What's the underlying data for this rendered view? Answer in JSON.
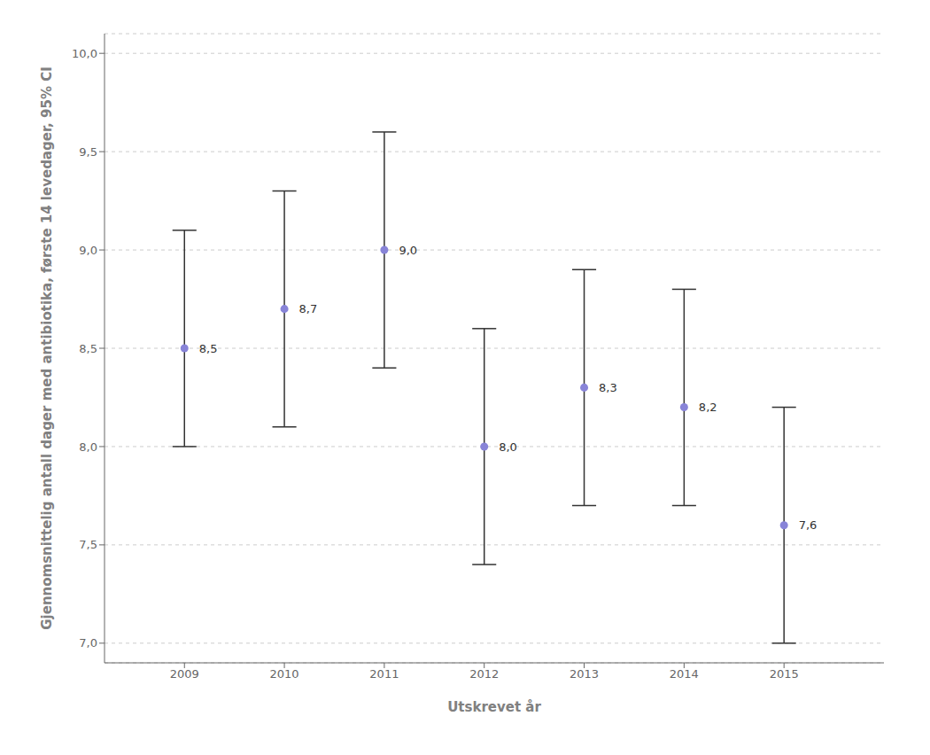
{
  "chart_data": {
    "type": "scatter",
    "xlabel": "Utskrevet år",
    "ylabel": "Gjennomsnittelig antall dager med antibiotika, første 14 levedager, 95% CI",
    "x": [
      2009,
      2010,
      2011,
      2012,
      2013,
      2014,
      2015
    ],
    "values": [
      8.5,
      8.7,
      9.0,
      8.0,
      8.3,
      8.2,
      7.6
    ],
    "value_labels": [
      "8,5",
      "8,7",
      "9,0",
      "8,0",
      "8,3",
      "8,2",
      "7,6"
    ],
    "error_upper": [
      9.1,
      9.3,
      9.6,
      8.6,
      8.9,
      8.8,
      8.2
    ],
    "error_lower": [
      8.0,
      8.1,
      8.4,
      7.4,
      7.7,
      7.7,
      7.0
    ],
    "data_labels": true,
    "xlim": [
      2008.2,
      2016.0
    ],
    "xticks": [
      2009,
      2010,
      2011,
      2012,
      2013,
      2014,
      2015
    ],
    "ylim": [
      6.9,
      10.1
    ],
    "yticks": [
      {
        "value": 7.0,
        "label": "7,0"
      },
      {
        "value": 7.5,
        "label": "7,5"
      },
      {
        "value": 8.0,
        "label": "8,0"
      },
      {
        "value": 8.5,
        "label": "8,5"
      },
      {
        "value": 9.0,
        "label": "9,0"
      },
      {
        "value": 9.5,
        "label": "9,5"
      },
      {
        "value": 10.0,
        "label": "10,0"
      }
    ],
    "grid": "y"
  }
}
